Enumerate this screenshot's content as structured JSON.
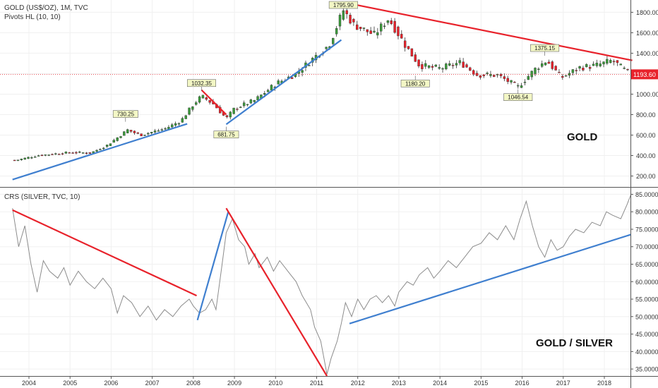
{
  "header": {
    "gold_title": "GOLD (US$/OZ), 1M, TVC",
    "gold_indicator": "Pivots HL (10, 10)",
    "crs_title": "CRS (SILVER, TVC, 10)"
  },
  "labels": {
    "gold": "GOLD",
    "ratio": "GOLD / SILVER"
  },
  "colors": {
    "up": "#3a9a3a",
    "down": "#e8222b",
    "trend_red": "#e8222b",
    "trend_blue": "#3f7fcf",
    "ratio_line": "#8c8c8c",
    "price_line": "#e8222b",
    "pivot_bg": "#f3f7c5"
  },
  "chart_data": [
    {
      "type": "candlestick",
      "title": "GOLD (US$/OZ), 1M, TVC",
      "ylim": [
        100,
        1920
      ],
      "y_ticks": [
        200,
        400,
        600,
        800,
        1000,
        1200,
        1400,
        1600,
        1800
      ],
      "y_tick_labels": [
        "200.00",
        "400.00",
        "600.00",
        "800.00",
        "1000.00",
        "1200.00",
        "1400.00",
        "1600.00",
        "1800.00"
      ],
      "x_range": [
        2003.6,
        2018.8
      ],
      "x_ticks": [
        "2004",
        "2005",
        "2006",
        "2007",
        "2008",
        "2009",
        "2010",
        "2011",
        "2012",
        "2013",
        "2014",
        "2015",
        "2016",
        "2017",
        "2018"
      ],
      "anchors": [
        [
          2003.7,
          355
        ],
        [
          2004.2,
          400
        ],
        [
          2005.0,
          430
        ],
        [
          2005.5,
          425
        ],
        [
          2005.9,
          500
        ],
        [
          2006.4,
          650
        ],
        [
          2006.7,
          600
        ],
        [
          2007.3,
          660
        ],
        [
          2007.7,
          740
        ],
        [
          2008.0,
          900
        ],
        [
          2008.2,
          980
        ],
        [
          2008.5,
          900
        ],
        [
          2008.8,
          760
        ],
        [
          2009.0,
          860
        ],
        [
          2009.5,
          940
        ],
        [
          2010.0,
          1100
        ],
        [
          2010.5,
          1200
        ],
        [
          2011.0,
          1380
        ],
        [
          2011.3,
          1480
        ],
        [
          2011.65,
          1820
        ],
        [
          2011.9,
          1680
        ],
        [
          2012.4,
          1580
        ],
        [
          2012.75,
          1740
        ],
        [
          2013.2,
          1450
        ],
        [
          2013.5,
          1280
        ],
        [
          2014.0,
          1250
        ],
        [
          2014.5,
          1310
        ],
        [
          2014.9,
          1190
        ],
        [
          2015.4,
          1185
        ],
        [
          2015.9,
          1070
        ],
        [
          2016.3,
          1240
        ],
        [
          2016.6,
          1330
        ],
        [
          2016.95,
          1160
        ],
        [
          2017.4,
          1260
        ],
        [
          2017.8,
          1280
        ],
        [
          2018.2,
          1330
        ],
        [
          2018.6,
          1200
        ]
      ],
      "pivots": [
        {
          "x": 2006.35,
          "y": 730.25,
          "label": "730.25",
          "kind": "high"
        },
        {
          "x": 2008.2,
          "y": 1032.35,
          "label": "1032.35",
          "kind": "high"
        },
        {
          "x": 2008.8,
          "y": 681.75,
          "label": "681.75",
          "kind": "low"
        },
        {
          "x": 2011.65,
          "y": 1795.9,
          "label": "1795.90",
          "kind": "high"
        },
        {
          "x": 2013.4,
          "y": 1180.2,
          "label": "1180.20",
          "kind": "low"
        },
        {
          "x": 2015.9,
          "y": 1046.54,
          "label": "1046.54",
          "kind": "low"
        },
        {
          "x": 2016.55,
          "y": 1375.15,
          "label": "1375.15",
          "kind": "high"
        }
      ],
      "current_price": {
        "value": 1193.6,
        "label": "1193.60"
      },
      "trendlines": [
        {
          "color": "blue",
          "from": [
            2003.6,
            165
          ],
          "to": [
            2007.85,
            710
          ]
        },
        {
          "color": "red",
          "from": [
            2008.2,
            1040
          ],
          "to": [
            2008.8,
            800
          ]
        },
        {
          "color": "blue",
          "from": [
            2008.8,
            705
          ],
          "to": [
            2011.6,
            1530
          ]
        },
        {
          "color": "red",
          "from": [
            2011.62,
            1900
          ],
          "to": [
            2018.68,
            1330
          ]
        }
      ]
    },
    {
      "type": "line",
      "title": "CRS (SILVER, TVC, 10)",
      "ylim": [
        33,
        86.5
      ],
      "y_ticks": [
        35,
        40,
        45,
        50,
        55,
        60,
        65,
        70,
        75,
        80,
        85
      ],
      "y_tick_labels": [
        "35.0000",
        "40.0000",
        "45.0000",
        "50.0000",
        "55.0000",
        "60.0000",
        "65.0000",
        "70.0000",
        "75.0000",
        "80.0000",
        "85.0000"
      ],
      "x_range": [
        2003.6,
        2018.8
      ],
      "x_ticks": [
        "2004",
        "2005",
        "2006",
        "2007",
        "2008",
        "2009",
        "2010",
        "2011",
        "2012",
        "2013",
        "2014",
        "2015",
        "2016",
        "2017",
        "2018"
      ],
      "series": [
        {
          "points": [
            [
              2003.6,
              81
            ],
            [
              2003.75,
              70
            ],
            [
              2003.9,
              76
            ],
            [
              2004.05,
              65
            ],
            [
              2004.2,
              57
            ],
            [
              2004.35,
              66
            ],
            [
              2004.5,
              63
            ],
            [
              2004.7,
              61
            ],
            [
              2004.85,
              64
            ],
            [
              2005.0,
              59
            ],
            [
              2005.2,
              63
            ],
            [
              2005.4,
              60
            ],
            [
              2005.6,
              58
            ],
            [
              2005.8,
              61
            ],
            [
              2006.0,
              58
            ],
            [
              2006.15,
              51
            ],
            [
              2006.3,
              56
            ],
            [
              2006.5,
              54
            ],
            [
              2006.7,
              50
            ],
            [
              2006.9,
              53
            ],
            [
              2007.1,
              49
            ],
            [
              2007.3,
              52
            ],
            [
              2007.5,
              50
            ],
            [
              2007.7,
              53
            ],
            [
              2007.9,
              55
            ],
            [
              2008.0,
              53
            ],
            [
              2008.15,
              51
            ],
            [
              2008.3,
              52
            ],
            [
              2008.45,
              55
            ],
            [
              2008.55,
              52
            ],
            [
              2008.7,
              65
            ],
            [
              2008.8,
              74
            ],
            [
              2008.95,
              78
            ],
            [
              2009.1,
              72
            ],
            [
              2009.25,
              70
            ],
            [
              2009.35,
              65
            ],
            [
              2009.5,
              68
            ],
            [
              2009.6,
              64
            ],
            [
              2009.8,
              67
            ],
            [
              2009.95,
              63
            ],
            [
              2010.1,
              66
            ],
            [
              2010.3,
              63
            ],
            [
              2010.5,
              60
            ],
            [
              2010.65,
              56
            ],
            [
              2010.85,
              52
            ],
            [
              2010.95,
              47
            ],
            [
              2011.1,
              43
            ],
            [
              2011.25,
              33.5
            ],
            [
              2011.35,
              38
            ],
            [
              2011.5,
              43
            ],
            [
              2011.6,
              48
            ],
            [
              2011.7,
              54
            ],
            [
              2011.85,
              50
            ],
            [
              2012.0,
              55
            ],
            [
              2012.15,
              52
            ],
            [
              2012.3,
              55
            ],
            [
              2012.45,
              56
            ],
            [
              2012.6,
              54
            ],
            [
              2012.75,
              56
            ],
            [
              2012.9,
              53
            ],
            [
              2013.0,
              57
            ],
            [
              2013.2,
              60
            ],
            [
              2013.35,
              59
            ],
            [
              2013.5,
              62
            ],
            [
              2013.7,
              64
            ],
            [
              2013.85,
              61
            ],
            [
              2014.0,
              63
            ],
            [
              2014.2,
              66
            ],
            [
              2014.4,
              64
            ],
            [
              2014.6,
              67
            ],
            [
              2014.8,
              70
            ],
            [
              2015.0,
              71
            ],
            [
              2015.2,
              74
            ],
            [
              2015.4,
              72
            ],
            [
              2015.6,
              76
            ],
            [
              2015.8,
              72
            ],
            [
              2015.95,
              78
            ],
            [
              2016.1,
              83
            ],
            [
              2016.25,
              76
            ],
            [
              2016.4,
              70
            ],
            [
              2016.55,
              67
            ],
            [
              2016.7,
              72
            ],
            [
              2016.85,
              69
            ],
            [
              2017.0,
              70
            ],
            [
              2017.15,
              73
            ],
            [
              2017.3,
              75
            ],
            [
              2017.5,
              74
            ],
            [
              2017.7,
              77
            ],
            [
              2017.9,
              76
            ],
            [
              2018.05,
              80
            ],
            [
              2018.2,
              79
            ],
            [
              2018.4,
              78
            ],
            [
              2018.55,
              82
            ],
            [
              2018.65,
              85
            ]
          ]
        }
      ],
      "trendlines": [
        {
          "color": "red",
          "from": [
            2003.6,
            80.5
          ],
          "to": [
            2008.08,
            56
          ]
        },
        {
          "color": "blue",
          "from": [
            2008.1,
            49
          ],
          "to": [
            2008.85,
            80
          ]
        },
        {
          "color": "red",
          "from": [
            2008.8,
            81
          ],
          "to": [
            2011.25,
            33
          ]
        },
        {
          "color": "blue",
          "from": [
            2011.8,
            48
          ],
          "to": [
            2018.65,
            73.5
          ]
        }
      ]
    }
  ]
}
